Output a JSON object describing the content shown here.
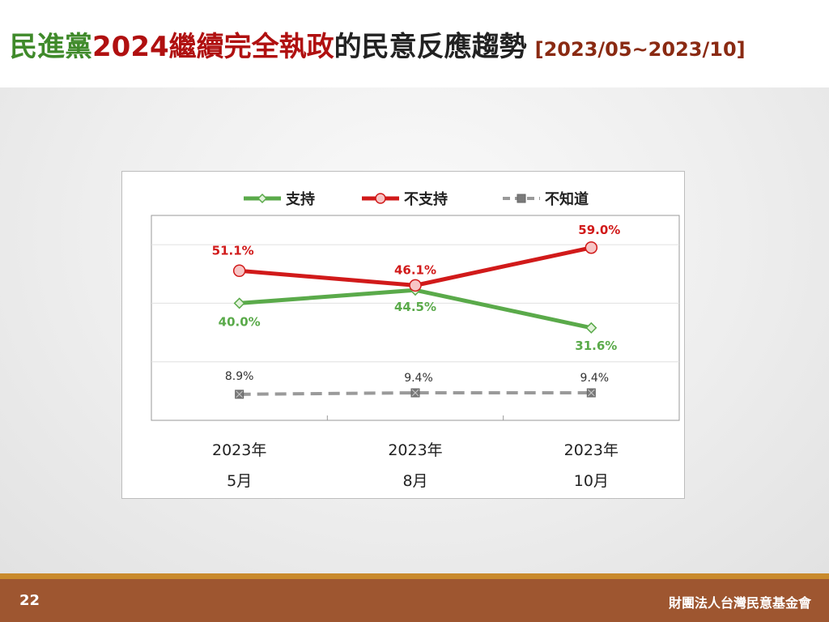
{
  "title": {
    "part1": "民進黨",
    "part2": "2024繼續完全執政",
    "part3": "的民意反應趨勢",
    "date_range": "[2023/05~2023/10]"
  },
  "footer": {
    "page_number": "22",
    "organization": "財團法人台灣民意基金會"
  },
  "colors": {
    "support": "#5aaa4a",
    "oppose": "#d11a1a",
    "unknown": "#9a9a9a",
    "title_green": "#3f8a2a",
    "title_red": "#b01010",
    "footer_bg": "#9e5630"
  },
  "chart_data": {
    "type": "line",
    "categories": [
      {
        "year": "2023年",
        "month": "5月"
      },
      {
        "year": "2023年",
        "month": "8月"
      },
      {
        "year": "2023年",
        "month": "10月"
      }
    ],
    "series": [
      {
        "name": "支持",
        "values": [
          40.0,
          44.5,
          31.6
        ],
        "labels": [
          "40.0%",
          "44.5%",
          "31.6%"
        ],
        "marker": "diamond",
        "color": "#5aaa4a"
      },
      {
        "name": "不支持",
        "values": [
          51.1,
          46.1,
          59.0
        ],
        "labels": [
          "51.1%",
          "46.1%",
          "59.0%"
        ],
        "marker": "circle",
        "color": "#d11a1a"
      },
      {
        "name": "不知道",
        "values": [
          8.9,
          9.4,
          9.4
        ],
        "labels": [
          "8.9%",
          "9.4%",
          "9.4%"
        ],
        "marker": "square-x",
        "dashed": true,
        "color": "#9a9a9a"
      }
    ],
    "ylim": [
      0,
      70
    ],
    "grid": true,
    "legend_position": "top"
  }
}
